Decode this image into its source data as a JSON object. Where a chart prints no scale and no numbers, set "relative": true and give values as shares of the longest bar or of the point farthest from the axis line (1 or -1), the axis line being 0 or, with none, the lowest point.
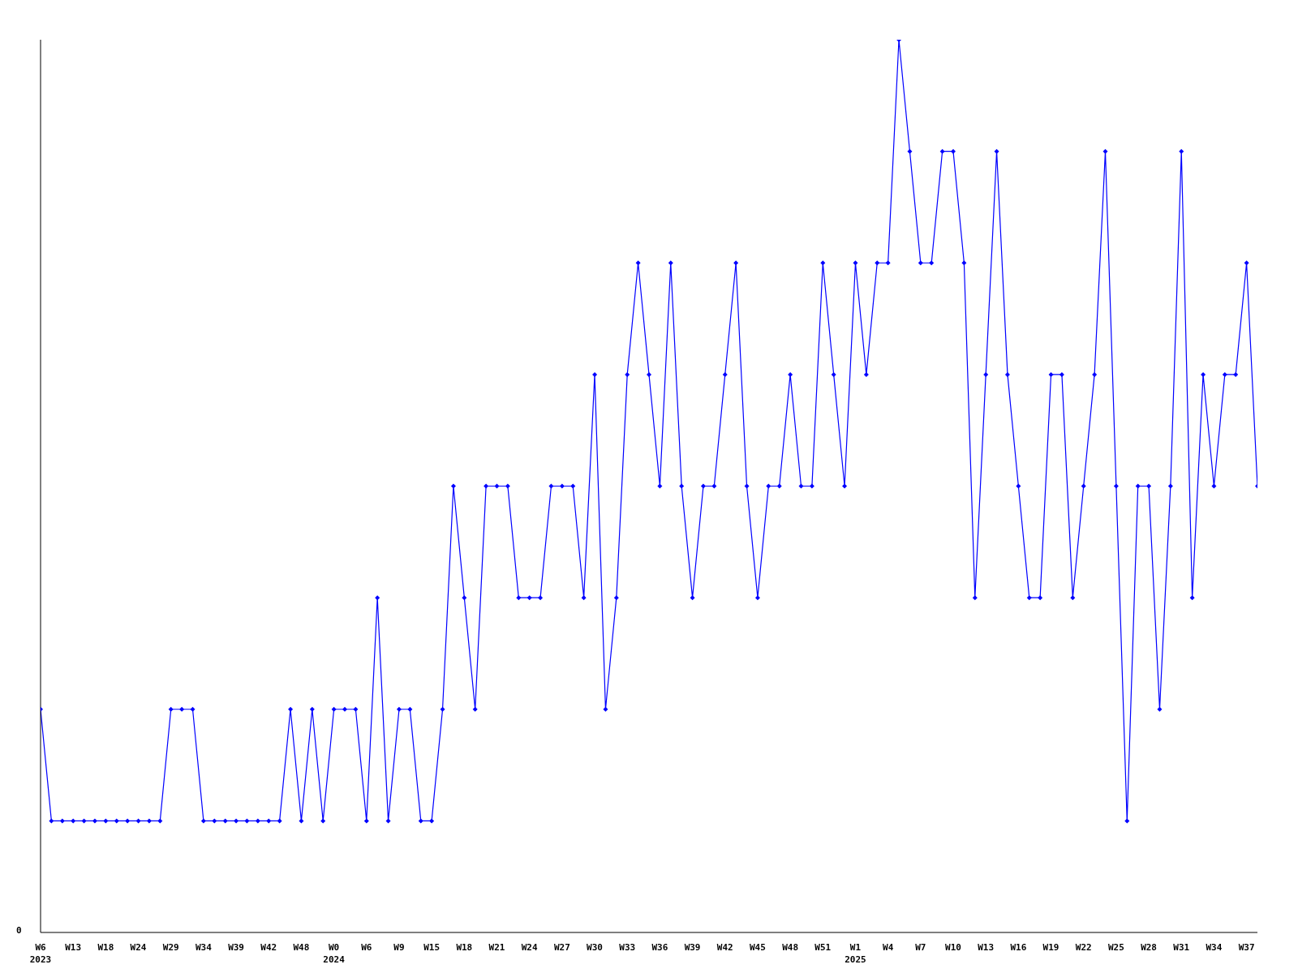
{
  "chart_data": {
    "type": "line",
    "relative": true,
    "categories": [
      "W6\n2023",
      null,
      null,
      "W13",
      null,
      null,
      "W18",
      null,
      null,
      "W24",
      null,
      null,
      "W29",
      null,
      null,
      "W34",
      null,
      null,
      "W39",
      null,
      null,
      "W42",
      null,
      null,
      "W48",
      null,
      null,
      "W0\n2024",
      null,
      null,
      "W6",
      null,
      null,
      "W9",
      null,
      null,
      "W15",
      null,
      null,
      "W18",
      null,
      null,
      "W21",
      null,
      null,
      "W24",
      null,
      null,
      "W27",
      null,
      null,
      "W30",
      null,
      null,
      "W33",
      null,
      null,
      "W36",
      null,
      null,
      "W39",
      null,
      null,
      "W42",
      null,
      null,
      "W45",
      null,
      null,
      "W48",
      null,
      null,
      "W51",
      null,
      null,
      "W1\n2025",
      null,
      null,
      "W4",
      null,
      null,
      "W7",
      null,
      null,
      "W10",
      null,
      null,
      "W13",
      null,
      null,
      "W16",
      null,
      null,
      "W19",
      null,
      null,
      "W22",
      null,
      null,
      "W25",
      null,
      null,
      "W28",
      null,
      null,
      "W31",
      null,
      null,
      "W34",
      null,
      null,
      "W37",
      null
    ],
    "series": [
      {
        "color": "#0000ff",
        "values": [
          0.25,
          0.125,
          0.125,
          0.125,
          0.125,
          0.125,
          0.125,
          0.125,
          0.125,
          0.125,
          0.125,
          0.125,
          0.25,
          0.25,
          0.25,
          0.125,
          0.125,
          0.125,
          0.125,
          0.125,
          0.125,
          0.125,
          0.125,
          0.25,
          0.125,
          0.25,
          0.125,
          0.25,
          0.25,
          0.25,
          0.125,
          0.375,
          0.125,
          0.25,
          0.25,
          0.125,
          0.125,
          0.25,
          0.5,
          0.375,
          0.25,
          0.5,
          0.5,
          0.5,
          0.375,
          0.375,
          0.375,
          0.5,
          0.5,
          0.5,
          0.375,
          0.625,
          0.25,
          0.375,
          0.625,
          0.75,
          0.625,
          0.5,
          0.75,
          0.5,
          0.375,
          0.5,
          0.5,
          0.625,
          0.75,
          0.5,
          0.375,
          0.5,
          0.5,
          0.625,
          0.5,
          0.5,
          0.75,
          0.625,
          0.5,
          0.75,
          0.625,
          0.75,
          0.75,
          1,
          0.875,
          0.75,
          0.75,
          0.875,
          0.875,
          0.75,
          0.375,
          0.625,
          0.875,
          0.625,
          0.5,
          0.375,
          0.375,
          0.625,
          0.625,
          0.375,
          0.5,
          0.625,
          0.875,
          0.5,
          0.125,
          0.5,
          0.5,
          0.25,
          0.5,
          0.875,
          0.375,
          0.625,
          0.5,
          0.625,
          0.625,
          0.75,
          0.5
        ]
      }
    ],
    "annotations": [
      "0"
    ],
    "marker": "diamond",
    "line_style": "solid"
  }
}
